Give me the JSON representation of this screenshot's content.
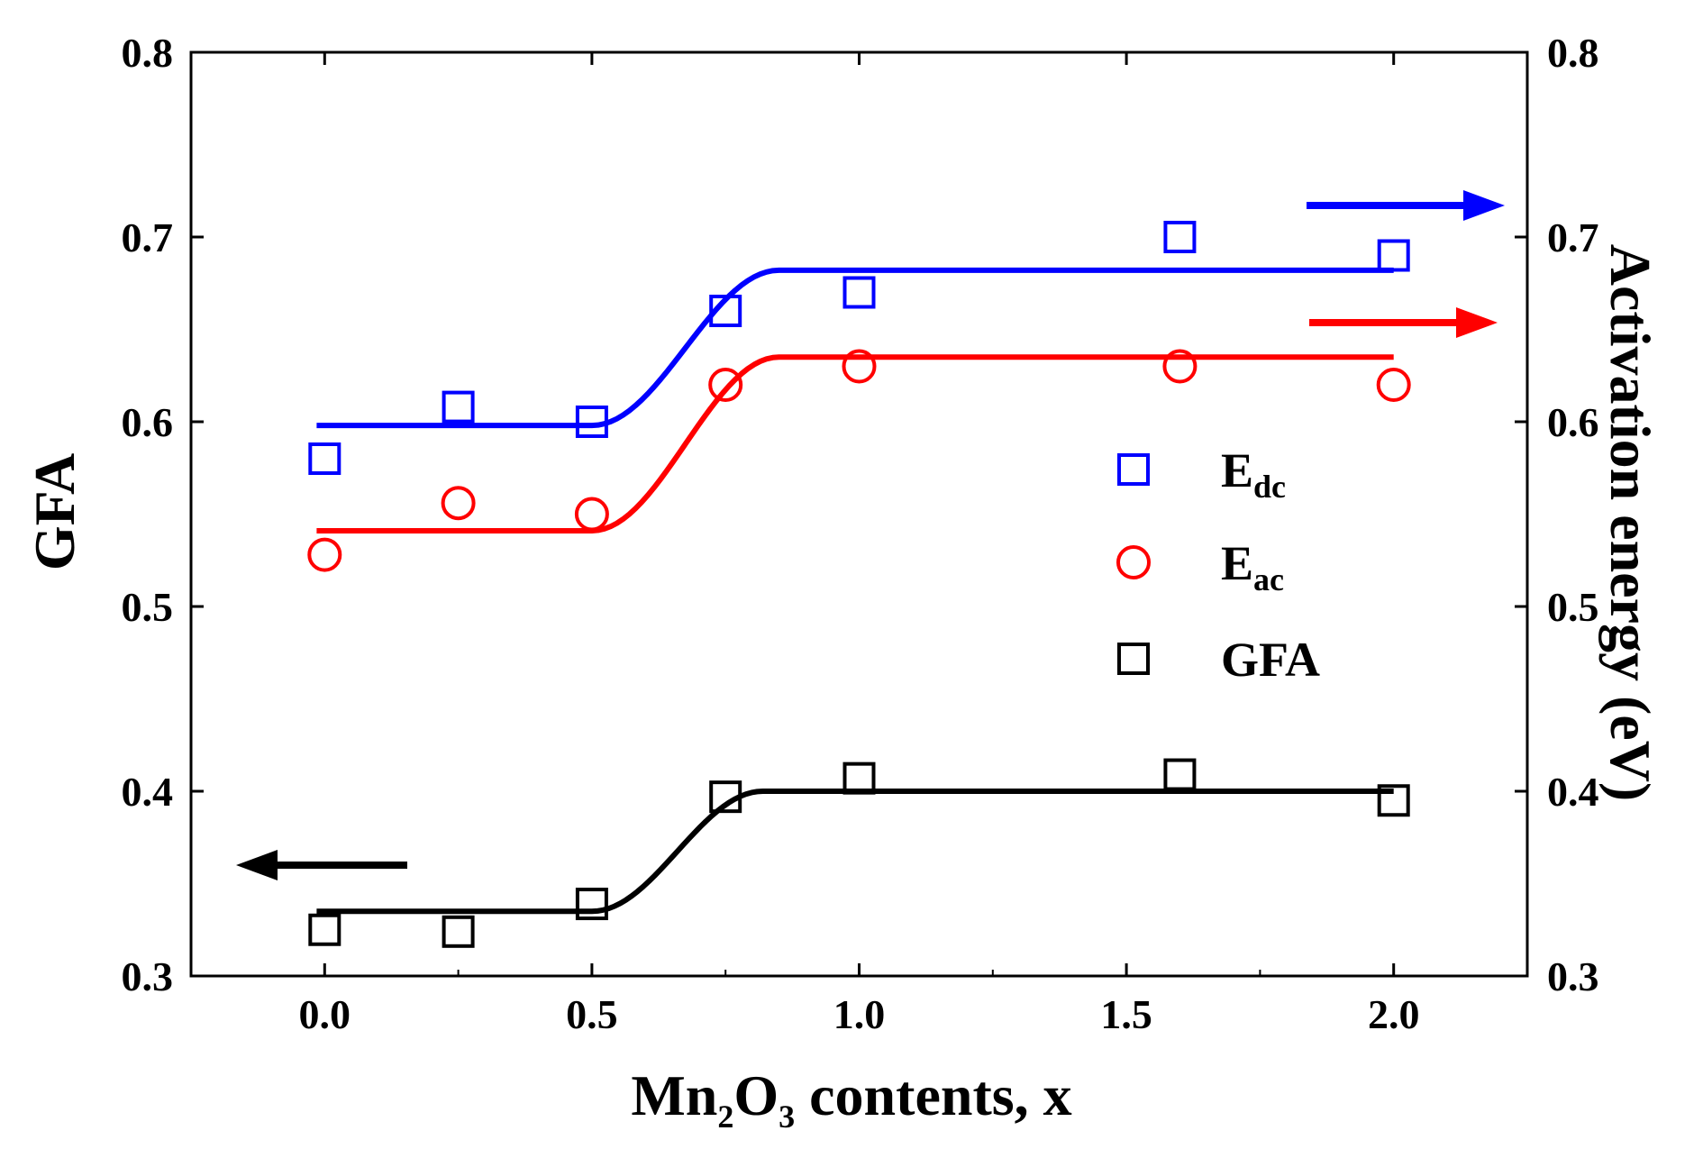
{
  "chart_data": {
    "type": "scatter",
    "title": "",
    "xlabel": {
      "main": "Mn",
      "sub1": "2",
      "mid": "O",
      "sub2": "3",
      "rest": " contents, x"
    },
    "ylabel_left": "GFA",
    "ylabel_right": "Activation energy (eV)",
    "xlim": [
      -0.25,
      2.25
    ],
    "ylim_left": [
      0.3,
      0.8
    ],
    "ylim_right": [
      0.3,
      0.8
    ],
    "xticks": [
      "0.0",
      "0.5",
      "1.0",
      "1.5",
      "2.0"
    ],
    "yticks_left": [
      "0.3",
      "0.4",
      "0.5",
      "0.6",
      "0.7",
      "0.8"
    ],
    "yticks_right": [
      "0.3",
      "0.4",
      "0.5",
      "0.6",
      "0.7",
      "0.8"
    ],
    "legend_position": "right-center",
    "series": [
      {
        "name": "Edc",
        "label_main": "E",
        "label_sub": "dc",
        "marker": "square",
        "color": "#0000ff",
        "axis": "right",
        "x": [
          0.0,
          0.25,
          0.5,
          0.75,
          1.0,
          1.6,
          2.0
        ],
        "y": [
          0.58,
          0.608,
          0.6,
          0.66,
          0.67,
          0.7,
          0.69
        ],
        "fit": {
          "low": 0.598,
          "high": 0.682,
          "x_start": 0.0,
          "x_low_end": 0.5,
          "x_high_start": 0.85,
          "x_end": 2.0
        }
      },
      {
        "name": "Eac",
        "label_main": "E",
        "label_sub": "ac",
        "marker": "circle",
        "color": "#ff0000",
        "axis": "right",
        "x": [
          0.0,
          0.25,
          0.5,
          0.75,
          1.0,
          1.6,
          2.0
        ],
        "y": [
          0.528,
          0.556,
          0.55,
          0.62,
          0.63,
          0.63,
          0.62
        ],
        "fit": {
          "low": 0.541,
          "high": 0.635,
          "x_start": 0.0,
          "x_low_end": 0.5,
          "x_high_start": 0.85,
          "x_end": 2.0
        }
      },
      {
        "name": "GFA",
        "label_main": "GFA",
        "label_sub": "",
        "marker": "square",
        "color": "#000000",
        "axis": "left",
        "x": [
          0.0,
          0.25,
          0.5,
          0.75,
          1.0,
          1.6,
          2.0
        ],
        "y": [
          0.325,
          0.324,
          0.339,
          0.397,
          0.407,
          0.409,
          0.395
        ],
        "fit": {
          "low": 0.335,
          "high": 0.4,
          "x_start": 0.0,
          "x_low_end": 0.5,
          "x_high_start": 0.82,
          "x_end": 2.0
        }
      }
    ],
    "annotations": [
      {
        "type": "arrow",
        "color": "#0000ff",
        "direction": "right",
        "meaning": "Edc uses right axis"
      },
      {
        "type": "arrow",
        "color": "#ff0000",
        "direction": "right",
        "meaning": "Eac uses right axis"
      },
      {
        "type": "arrow",
        "color": "#000000",
        "direction": "left",
        "meaning": "GFA uses left axis"
      }
    ]
  }
}
